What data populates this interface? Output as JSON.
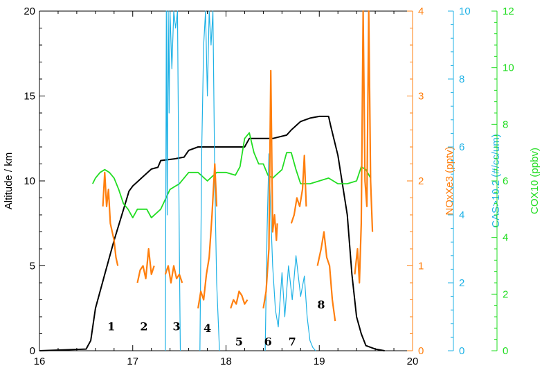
{
  "chart_data": {
    "type": "line",
    "x": {
      "label": "",
      "range": [
        16,
        20
      ],
      "ticks": [
        "16",
        "17",
        "18",
        "19",
        "20"
      ]
    },
    "axes": [
      {
        "id": "altitude",
        "label": "Altitude / km",
        "side": "left",
        "color": "#000000",
        "range": [
          0,
          20
        ],
        "ticks": [
          "0",
          "5",
          "10",
          "15",
          "20"
        ]
      },
      {
        "id": "nox",
        "label": "NOxXe3 (pptv)",
        "side": "right",
        "color": "#ff7f0e",
        "range": [
          0,
          4
        ],
        "ticks": [
          "0",
          "1",
          "2",
          "3",
          "4"
        ]
      },
      {
        "id": "cas",
        "label": "CAS>10.2 (#/cc/um)",
        "side": "right",
        "color": "#1fb2e6",
        "range": [
          0,
          10
        ],
        "ticks": [
          "0",
          "2",
          "4",
          "6",
          "8",
          "10"
        ]
      },
      {
        "id": "co",
        "label": "COX10 (ppbv)",
        "side": "right",
        "color": "#22dd22",
        "range": [
          0,
          12
        ],
        "ticks": [
          "0",
          "2",
          "4",
          "6",
          "8",
          "10",
          "12"
        ]
      }
    ],
    "series": [
      {
        "axis": "altitude",
        "color": "#000000",
        "points": [
          [
            16.0,
            0
          ],
          [
            16.5,
            0.1
          ],
          [
            16.55,
            0.6
          ],
          [
            16.6,
            2.5
          ],
          [
            16.7,
            4.5
          ],
          [
            16.8,
            6.5
          ],
          [
            16.9,
            8.3
          ],
          [
            16.96,
            9.4
          ],
          [
            17.0,
            9.7
          ],
          [
            17.1,
            10.2
          ],
          [
            17.2,
            10.7
          ],
          [
            17.27,
            10.8
          ],
          [
            17.3,
            11.2
          ],
          [
            17.45,
            11.3
          ],
          [
            17.55,
            11.4
          ],
          [
            17.6,
            11.8
          ],
          [
            17.7,
            12.0
          ],
          [
            18.2,
            12.0
          ],
          [
            18.25,
            12.5
          ],
          [
            18.5,
            12.5
          ],
          [
            18.65,
            12.7
          ],
          [
            18.7,
            13.0
          ],
          [
            18.8,
            13.5
          ],
          [
            18.9,
            13.7
          ],
          [
            19.0,
            13.8
          ],
          [
            19.1,
            13.8
          ],
          [
            19.12,
            13.3
          ],
          [
            19.2,
            11.5
          ],
          [
            19.3,
            8.0
          ],
          [
            19.35,
            4.5
          ],
          [
            19.4,
            2.0
          ],
          [
            19.45,
            1.0
          ],
          [
            19.5,
            0.3
          ],
          [
            19.6,
            0.1
          ],
          [
            19.7,
            0
          ]
        ]
      },
      {
        "axis": "co",
        "color": "#22dd22",
        "points": [
          [
            16.57,
            5.9
          ],
          [
            16.6,
            6.1
          ],
          [
            16.65,
            6.3
          ],
          [
            16.7,
            6.4
          ],
          [
            16.75,
            6.3
          ],
          [
            16.8,
            6.1
          ],
          [
            16.85,
            5.7
          ],
          [
            16.9,
            5.2
          ],
          [
            16.95,
            5.0
          ],
          [
            17.0,
            4.7
          ],
          [
            17.05,
            5.0
          ],
          [
            17.15,
            5.0
          ],
          [
            17.2,
            4.7
          ],
          [
            17.3,
            5.0
          ],
          [
            17.4,
            5.7
          ],
          [
            17.5,
            5.9
          ],
          [
            17.6,
            6.3
          ],
          [
            17.7,
            6.3
          ],
          [
            17.8,
            6.0
          ],
          [
            17.9,
            6.3
          ],
          [
            18.0,
            6.3
          ],
          [
            18.1,
            6.2
          ],
          [
            18.15,
            6.5
          ],
          [
            18.2,
            7.5
          ],
          [
            18.25,
            7.7
          ],
          [
            18.3,
            7.0
          ],
          [
            18.35,
            6.6
          ],
          [
            18.4,
            6.6
          ],
          [
            18.45,
            6.2
          ],
          [
            18.5,
            6.1
          ],
          [
            18.6,
            6.4
          ],
          [
            18.65,
            7.0
          ],
          [
            18.7,
            7.0
          ],
          [
            18.75,
            6.4
          ],
          [
            18.8,
            5.9
          ],
          [
            18.9,
            5.9
          ],
          [
            19.0,
            6.0
          ],
          [
            19.1,
            6.1
          ],
          [
            19.2,
            5.9
          ],
          [
            19.3,
            5.9
          ],
          [
            19.4,
            6.0
          ],
          [
            19.45,
            6.5
          ],
          [
            19.5,
            6.4
          ],
          [
            19.55,
            6.1
          ]
        ]
      },
      {
        "axis": "cas",
        "color": "#1fb2e6",
        "segments": [
          [
            [
              17.35,
              0
            ],
            [
              17.36,
              10
            ],
            [
              17.37,
              4
            ],
            [
              17.38,
              10
            ],
            [
              17.39,
              7
            ],
            [
              17.4,
              10
            ],
            [
              17.42,
              8.3
            ],
            [
              17.44,
              10
            ],
            [
              17.46,
              9.5
            ],
            [
              17.48,
              10
            ],
            [
              17.5,
              3
            ],
            [
              17.51,
              0
            ]
          ],
          [
            [
              17.72,
              0
            ],
            [
              17.74,
              6
            ],
            [
              17.76,
              9
            ],
            [
              17.78,
              10
            ],
            [
              17.8,
              7.5
            ],
            [
              17.82,
              10
            ],
            [
              17.84,
              9
            ],
            [
              17.86,
              10
            ],
            [
              17.88,
              5
            ],
            [
              17.9,
              2
            ],
            [
              17.93,
              0
            ]
          ],
          [
            [
              18.42,
              0
            ],
            [
              18.44,
              3.5
            ],
            [
              18.46,
              5.8
            ],
            [
              18.48,
              4.0
            ],
            [
              18.5,
              2.5
            ],
            [
              18.53,
              1.2
            ],
            [
              18.56,
              0.7
            ],
            [
              18.6,
              2.3
            ],
            [
              18.63,
              1.0
            ],
            [
              18.67,
              2.5
            ],
            [
              18.71,
              1.5
            ],
            [
              18.75,
              2.8
            ],
            [
              18.8,
              1.6
            ],
            [
              18.84,
              2.2
            ],
            [
              18.87,
              1.0
            ],
            [
              18.9,
              0.3
            ],
            [
              18.93,
              0.1
            ],
            [
              18.96,
              0
            ]
          ]
        ]
      },
      {
        "axis": "nox",
        "color": "#ff7f0e",
        "segments": [
          [
            [
              16.68,
              1.7
            ],
            [
              16.7,
              2.1
            ],
            [
              16.72,
              1.7
            ],
            [
              16.74,
              1.9
            ],
            [
              16.76,
              1.5
            ],
            [
              16.78,
              1.4
            ],
            [
              16.8,
              1.3
            ],
            [
              16.82,
              1.1
            ],
            [
              16.84,
              1.0
            ]
          ],
          [
            [
              17.05,
              0.8
            ],
            [
              17.08,
              0.95
            ],
            [
              17.11,
              1.0
            ],
            [
              17.14,
              0.85
            ],
            [
              17.17,
              1.2
            ],
            [
              17.2,
              0.9
            ],
            [
              17.23,
              1.0
            ]
          ],
          [
            [
              17.35,
              0.9
            ],
            [
              17.38,
              1.0
            ],
            [
              17.41,
              0.8
            ],
            [
              17.44,
              1.0
            ],
            [
              17.47,
              0.85
            ],
            [
              17.5,
              0.9
            ],
            [
              17.53,
              0.8
            ]
          ],
          [
            [
              17.7,
              0.5
            ],
            [
              17.73,
              0.7
            ],
            [
              17.76,
              0.6
            ],
            [
              17.79,
              0.9
            ],
            [
              17.82,
              1.1
            ],
            [
              17.85,
              1.6
            ],
            [
              17.88,
              2.2
            ],
            [
              17.9,
              1.7
            ]
          ],
          [
            [
              18.05,
              0.5
            ],
            [
              18.08,
              0.6
            ],
            [
              18.11,
              0.55
            ],
            [
              18.14,
              0.7
            ],
            [
              18.17,
              0.65
            ],
            [
              18.2,
              0.55
            ],
            [
              18.23,
              0.6
            ]
          ],
          [
            [
              18.4,
              0.5
            ],
            [
              18.43,
              0.7
            ],
            [
              18.46,
              1.2
            ],
            [
              18.48,
              3.3
            ],
            [
              18.5,
              1.4
            ],
            [
              18.52,
              1.6
            ],
            [
              18.54,
              1.3
            ],
            [
              18.55,
              1.5
            ]
          ],
          [
            [
              18.7,
              1.5
            ],
            [
              18.73,
              1.6
            ],
            [
              18.76,
              1.8
            ],
            [
              18.79,
              1.7
            ],
            [
              18.82,
              1.9
            ],
            [
              18.84,
              2.3
            ],
            [
              18.86,
              1.7
            ]
          ],
          [
            [
              18.98,
              1.0
            ],
            [
              19.02,
              1.2
            ],
            [
              19.05,
              1.4
            ],
            [
              19.08,
              1.1
            ],
            [
              19.11,
              1.0
            ],
            [
              19.14,
              0.6
            ],
            [
              19.17,
              0.35
            ]
          ],
          [
            [
              19.38,
              0.9
            ],
            [
              19.41,
              1.2
            ],
            [
              19.43,
              0.8
            ],
            [
              19.45,
              1.5
            ],
            [
              19.47,
              4.0
            ],
            [
              19.49,
              2.0
            ],
            [
              19.51,
              1.7
            ],
            [
              19.53,
              4.0
            ],
            [
              19.55,
              2.0
            ],
            [
              19.57,
              1.4
            ]
          ]
        ]
      }
    ],
    "annotations": [
      {
        "text": "1",
        "x": 16.77,
        "y": 1.2
      },
      {
        "text": "2",
        "x": 17.12,
        "y": 1.2
      },
      {
        "text": "3",
        "x": 17.47,
        "y": 1.2
      },
      {
        "text": "4",
        "x": 17.8,
        "y": 1.1
      },
      {
        "text": "5",
        "x": 18.14,
        "y": 0.3
      },
      {
        "text": "6",
        "x": 18.45,
        "y": 0.3
      },
      {
        "text": "7",
        "x": 18.71,
        "y": 0.3
      },
      {
        "text": "8",
        "x": 19.02,
        "y": 2.5
      }
    ],
    "grid": false
  }
}
